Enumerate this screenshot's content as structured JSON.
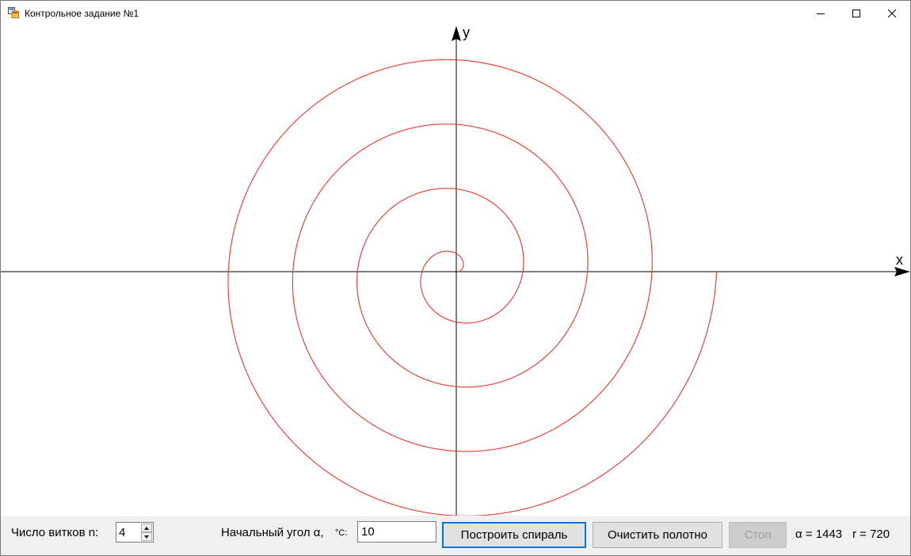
{
  "window": {
    "title": "Контрольное задание №1"
  },
  "canvas": {
    "axis_x_label": "x",
    "axis_y_label": "y",
    "spiral_color": "#e8453c",
    "axis_color": "#000000"
  },
  "controls": {
    "turns_label": "Число витков n:",
    "turns_value": "4",
    "angle_label": "Начальный угол α,",
    "angle_unit": "°С:",
    "angle_value": "10",
    "build_button": "Построить спираль",
    "clear_button": "Очистить полотно",
    "stop_button": "Стоп",
    "alpha_status": "α = 1443",
    "r_status": "r =  720"
  }
}
